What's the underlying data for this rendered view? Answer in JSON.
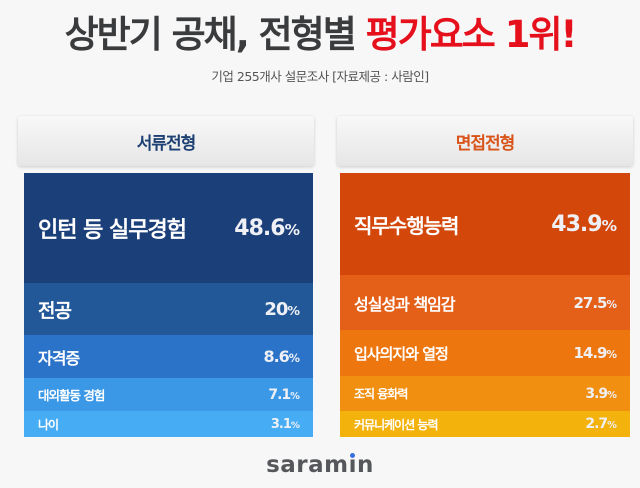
{
  "header": {
    "title_main": "상반기 공채, 전형별 ",
    "title_highlight": "평가요소 1위!",
    "subtitle": "기업 255개사 설문조사 [자료제공 : 사람인]"
  },
  "columns": {
    "document": {
      "title": "서류전형",
      "rows": [
        {
          "label": "인턴 등 실무경험",
          "value": "48.6",
          "unit": "%"
        },
        {
          "label": "전공",
          "value": "20",
          "unit": "%"
        },
        {
          "label": "자격증",
          "value": "8.6",
          "unit": "%"
        },
        {
          "label": "대외활동 경험",
          "value": "7.1",
          "unit": "%"
        },
        {
          "label": "나이",
          "value": "3.1",
          "unit": "%"
        }
      ]
    },
    "interview": {
      "title": "면접전형",
      "rows": [
        {
          "label": "직무수행능력",
          "value": "43.9",
          "unit": "%"
        },
        {
          "label": "성실성과 책임감",
          "value": "27.5",
          "unit": "%"
        },
        {
          "label": "입사의지와 열정",
          "value": "14.9",
          "unit": "%"
        },
        {
          "label": "조직 융화력",
          "value": "3.9",
          "unit": "%"
        },
        {
          "label": "커뮤니케이션 능력",
          "value": "2.7",
          "unit": "%"
        }
      ]
    }
  },
  "logo": {
    "pre": "sara",
    "m": "m",
    "i": "ı",
    "post": "n"
  },
  "colors": {
    "title": "#3a3b3d",
    "highlight": "#e5101c",
    "document_header": "#1d3f72",
    "interview_header": "#d9541a",
    "document_rows": [
      "#1b3f78",
      "#235898",
      "#2b73c8",
      "#3a98e7",
      "#46adf5"
    ],
    "interview_rows": [
      "#d4470b",
      "#e45f17",
      "#ee760f",
      "#f08f10",
      "#f3b20c"
    ],
    "logo_dot": "#3a6fe0"
  },
  "chart_data": [
    {
      "type": "table",
      "title": "서류전형",
      "categories": [
        "인턴 등 실무경험",
        "전공",
        "자격증",
        "대외활동 경험",
        "나이"
      ],
      "values": [
        48.6,
        20,
        8.6,
        7.1,
        3.1
      ],
      "unit": "%"
    },
    {
      "type": "table",
      "title": "면접전형",
      "categories": [
        "직무수행능력",
        "성실성과 책임감",
        "입사의지와 열정",
        "조직 융화력",
        "커뮤니케이션 능력"
      ],
      "values": [
        43.9,
        27.5,
        14.9,
        3.9,
        2.7
      ],
      "unit": "%"
    }
  ]
}
